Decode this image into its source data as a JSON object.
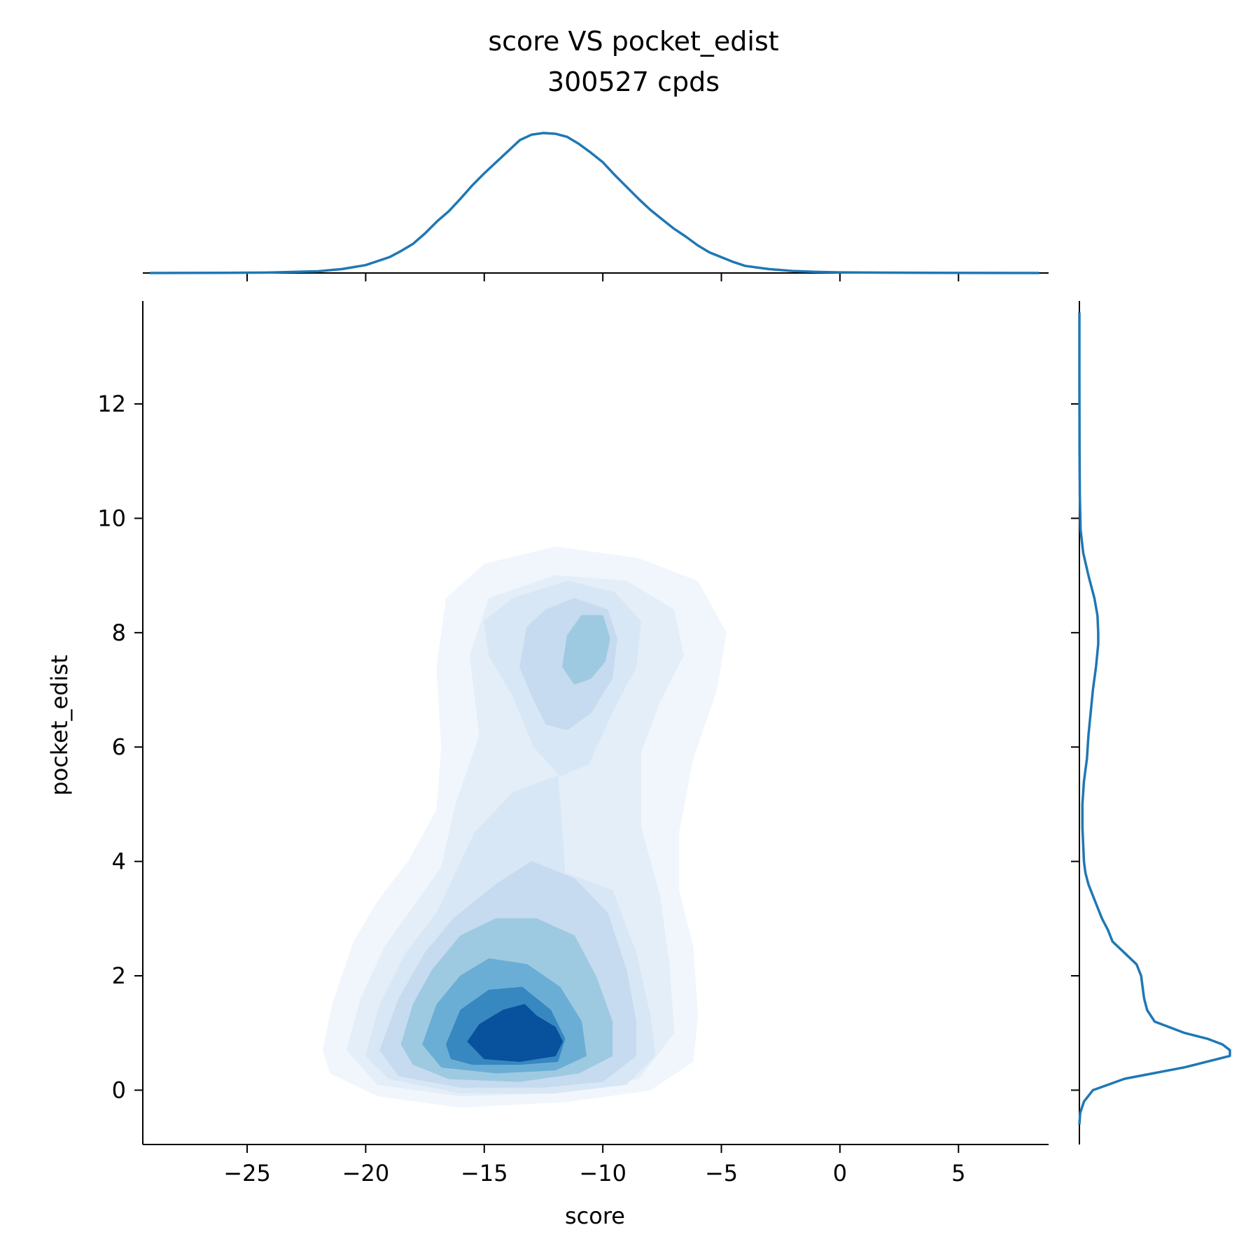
{
  "chart_data": {
    "type": "kde-jointplot",
    "title_line1": "score VS pocket_edist",
    "title_line2": "300527 cpds",
    "xlabel": "score",
    "ylabel": "pocket_edist",
    "xlim": [
      -29.4,
      8.8
    ],
    "ylim": [
      -0.95,
      13.8
    ],
    "x_ticks": [
      -25,
      -20,
      -15,
      -10,
      -5,
      0,
      5
    ],
    "x_tick_labels": [
      "−25",
      "−20",
      "−15",
      "−10",
      "−5",
      "0",
      "5"
    ],
    "y_ticks": [
      0,
      2,
      4,
      6,
      8,
      10,
      12
    ],
    "y_tick_labels": [
      "0",
      "2",
      "4",
      "6",
      "8",
      "10",
      "12"
    ],
    "line_color": "#1f77b4",
    "contour_colors": [
      "#f0f6fc",
      "#e3eef8",
      "#d8e7f5",
      "#c6dbef",
      "#9ecae1",
      "#6aaed6",
      "#3787c0",
      "#08519c"
    ],
    "top_marginal_kde": {
      "x": [
        -29.1,
        -26,
        -24,
        -22,
        -21,
        -20,
        -19,
        -18.5,
        -18,
        -17.5,
        -17,
        -16.5,
        -16,
        -15.5,
        -15,
        -14.5,
        -14,
        -13.5,
        -13,
        -12.5,
        -12,
        -11.5,
        -11,
        -10.5,
        -10,
        -9.5,
        -9,
        -8.5,
        -8,
        -7.5,
        -7,
        -6.5,
        -6,
        -5.5,
        -5,
        -4.5,
        -4,
        -3,
        -2,
        -1,
        0,
        2,
        4,
        6,
        8.4
      ],
      "density": [
        0.0,
        0.001,
        0.003,
        0.011,
        0.025,
        0.05,
        0.1,
        0.14,
        0.185,
        0.25,
        0.325,
        0.39,
        0.47,
        0.555,
        0.63,
        0.7,
        0.77,
        0.84,
        0.875,
        0.885,
        0.88,
        0.86,
        0.815,
        0.76,
        0.7,
        0.62,
        0.545,
        0.47,
        0.4,
        0.34,
        0.28,
        0.23,
        0.175,
        0.13,
        0.1,
        0.07,
        0.045,
        0.025,
        0.013,
        0.007,
        0.004,
        0.002,
        0.001,
        0.0005,
        0.0
      ]
    },
    "right_marginal_kde": {
      "y": [
        -0.6,
        -0.4,
        -0.2,
        0.0,
        0.2,
        0.4,
        0.6,
        0.7,
        0.8,
        0.9,
        1.0,
        1.2,
        1.4,
        1.6,
        1.8,
        2.0,
        2.2,
        2.4,
        2.6,
        2.8,
        3.0,
        3.2,
        3.4,
        3.6,
        3.8,
        4.0,
        4.3,
        4.6,
        5.0,
        5.4,
        5.8,
        6.2,
        6.6,
        7.0,
        7.4,
        7.8,
        8.0,
        8.3,
        8.6,
        9.0,
        9.4,
        9.8,
        10.4,
        11.2,
        12.5,
        13.6
      ],
      "density": [
        0.0,
        0.005,
        0.03,
        0.09,
        0.3,
        0.7,
        1.0,
        1.0,
        0.95,
        0.85,
        0.7,
        0.5,
        0.45,
        0.43,
        0.42,
        0.41,
        0.38,
        0.3,
        0.22,
        0.19,
        0.15,
        0.12,
        0.09,
        0.06,
        0.04,
        0.03,
        0.025,
        0.02,
        0.02,
        0.03,
        0.05,
        0.06,
        0.075,
        0.09,
        0.11,
        0.125,
        0.125,
        0.12,
        0.1,
        0.06,
        0.025,
        0.008,
        0.003,
        0.001,
        0.0,
        0.0
      ]
    },
    "kde_contours": [
      {
        "level": 1,
        "points": [
          [
            -21.8,
            0.7
          ],
          [
            -21.4,
            1.5
          ],
          [
            -20.5,
            2.6
          ],
          [
            -19.5,
            3.3
          ],
          [
            -18.2,
            4.0
          ],
          [
            -17.0,
            4.9
          ],
          [
            -16.8,
            6.0
          ],
          [
            -17.0,
            7.4
          ],
          [
            -16.6,
            8.6
          ],
          [
            -15.0,
            9.2
          ],
          [
            -12.0,
            9.5
          ],
          [
            -8.5,
            9.3
          ],
          [
            -6.0,
            8.9
          ],
          [
            -4.8,
            8.0
          ],
          [
            -5.2,
            7.0
          ],
          [
            -6.2,
            5.8
          ],
          [
            -6.8,
            4.5
          ],
          [
            -6.8,
            3.5
          ],
          [
            -6.2,
            2.5
          ],
          [
            -6.0,
            1.3
          ],
          [
            -6.2,
            0.5
          ],
          [
            -8.0,
            0.0
          ],
          [
            -11.5,
            -0.2
          ],
          [
            -16.0,
            -0.3
          ],
          [
            -19.5,
            -0.1
          ],
          [
            -21.5,
            0.3
          ]
        ]
      },
      {
        "level": 2,
        "points": [
          [
            -20.8,
            0.7
          ],
          [
            -20.2,
            1.6
          ],
          [
            -19.2,
            2.5
          ],
          [
            -18.0,
            3.2
          ],
          [
            -16.8,
            3.9
          ],
          [
            -16.2,
            5.0
          ],
          [
            -15.2,
            6.2
          ],
          [
            -15.6,
            7.6
          ],
          [
            -14.8,
            8.6
          ],
          [
            -12.0,
            9.0
          ],
          [
            -9.0,
            8.9
          ],
          [
            -7.0,
            8.4
          ],
          [
            -6.6,
            7.6
          ],
          [
            -7.6,
            6.8
          ],
          [
            -8.4,
            5.9
          ],
          [
            -8.4,
            4.6
          ],
          [
            -7.6,
            3.4
          ],
          [
            -7.2,
            2.2
          ],
          [
            -7.0,
            1.0
          ],
          [
            -8.5,
            0.2
          ],
          [
            -12.0,
            -0.05
          ],
          [
            -16.0,
            -0.1
          ],
          [
            -19.5,
            0.1
          ]
        ]
      },
      {
        "level": 3,
        "points": [
          [
            -20.0,
            0.6
          ],
          [
            -19.4,
            1.5
          ],
          [
            -18.3,
            2.4
          ],
          [
            -17.0,
            3.1
          ],
          [
            -16.2,
            3.8
          ],
          [
            -15.4,
            4.5
          ],
          [
            -13.8,
            5.2
          ],
          [
            -11.9,
            5.5
          ],
          [
            -11.8,
            5.0
          ],
          [
            -11.6,
            3.8
          ],
          [
            -9.6,
            3.5
          ],
          [
            -8.6,
            2.4
          ],
          [
            -8.0,
            1.3
          ],
          [
            -7.8,
            0.6
          ],
          [
            -9.0,
            0.1
          ],
          [
            -12.0,
            -0.05
          ],
          [
            -16.0,
            -0.05
          ],
          [
            -19.0,
            0.2
          ]
        ]
      },
      {
        "level": 3,
        "points": [
          [
            -14.8,
            7.6
          ],
          [
            -15.0,
            8.2
          ],
          [
            -13.8,
            8.6
          ],
          [
            -11.5,
            8.9
          ],
          [
            -9.5,
            8.7
          ],
          [
            -8.4,
            8.2
          ],
          [
            -8.6,
            7.4
          ],
          [
            -9.5,
            6.7
          ],
          [
            -10.6,
            5.7
          ],
          [
            -11.8,
            5.5
          ],
          [
            -12.9,
            6.0
          ],
          [
            -13.8,
            6.9
          ]
        ]
      },
      {
        "level": 4,
        "points": [
          [
            -19.4,
            0.7
          ],
          [
            -18.6,
            1.6
          ],
          [
            -17.5,
            2.4
          ],
          [
            -16.3,
            3.0
          ],
          [
            -14.5,
            3.6
          ],
          [
            -13.0,
            4.0
          ],
          [
            -11.2,
            3.7
          ],
          [
            -9.8,
            3.1
          ],
          [
            -9.0,
            2.1
          ],
          [
            -8.6,
            1.2
          ],
          [
            -8.6,
            0.6
          ],
          [
            -10.0,
            0.15
          ],
          [
            -12.5,
            0.05
          ],
          [
            -16.0,
            0.05
          ],
          [
            -18.6,
            0.25
          ]
        ]
      },
      {
        "level": 4,
        "points": [
          [
            -13.5,
            7.4
          ],
          [
            -13.2,
            8.1
          ],
          [
            -12.4,
            8.4
          ],
          [
            -11.2,
            8.6
          ],
          [
            -9.8,
            8.4
          ],
          [
            -9.4,
            7.9
          ],
          [
            -9.6,
            7.2
          ],
          [
            -10.5,
            6.6
          ],
          [
            -11.5,
            6.3
          ],
          [
            -12.4,
            6.4
          ],
          [
            -13.0,
            6.9
          ]
        ]
      },
      {
        "level": 5,
        "points": [
          [
            -11.7,
            7.4
          ],
          [
            -11.5,
            7.95
          ],
          [
            -10.9,
            8.3
          ],
          [
            -10.0,
            8.3
          ],
          [
            -9.7,
            7.9
          ],
          [
            -9.9,
            7.5
          ],
          [
            -10.5,
            7.2
          ],
          [
            -11.2,
            7.1
          ]
        ]
      },
      {
        "level": 5,
        "points": [
          [
            -18.5,
            0.8
          ],
          [
            -18.0,
            1.5
          ],
          [
            -17.2,
            2.1
          ],
          [
            -16.0,
            2.7
          ],
          [
            -14.5,
            3.0
          ],
          [
            -12.8,
            3.0
          ],
          [
            -11.2,
            2.7
          ],
          [
            -10.3,
            2.0
          ],
          [
            -9.6,
            1.2
          ],
          [
            -9.6,
            0.6
          ],
          [
            -11.0,
            0.3
          ],
          [
            -13.5,
            0.15
          ],
          [
            -16.5,
            0.2
          ],
          [
            -18.0,
            0.45
          ]
        ]
      },
      {
        "level": 6,
        "points": [
          [
            -17.6,
            0.8
          ],
          [
            -17.0,
            1.5
          ],
          [
            -16.0,
            2.0
          ],
          [
            -14.8,
            2.3
          ],
          [
            -13.2,
            2.2
          ],
          [
            -11.8,
            1.8
          ],
          [
            -10.9,
            1.2
          ],
          [
            -10.7,
            0.6
          ],
          [
            -12.0,
            0.35
          ],
          [
            -14.5,
            0.3
          ],
          [
            -16.8,
            0.4
          ]
        ]
      },
      {
        "level": 7,
        "points": [
          [
            -16.6,
            0.8
          ],
          [
            -16.0,
            1.4
          ],
          [
            -14.8,
            1.75
          ],
          [
            -13.4,
            1.8
          ],
          [
            -12.2,
            1.4
          ],
          [
            -11.6,
            0.9
          ],
          [
            -11.9,
            0.5
          ],
          [
            -13.5,
            0.45
          ],
          [
            -15.5,
            0.45
          ],
          [
            -16.4,
            0.55
          ]
        ]
      },
      {
        "level": 8,
        "points": [
          [
            -15.7,
            0.85
          ],
          [
            -15.2,
            1.15
          ],
          [
            -14.2,
            1.4
          ],
          [
            -13.3,
            1.5
          ],
          [
            -12.8,
            1.3
          ],
          [
            -12.0,
            1.1
          ],
          [
            -11.7,
            0.85
          ],
          [
            -12.0,
            0.6
          ],
          [
            -13.5,
            0.5
          ],
          [
            -15.0,
            0.55
          ]
        ]
      }
    ]
  }
}
